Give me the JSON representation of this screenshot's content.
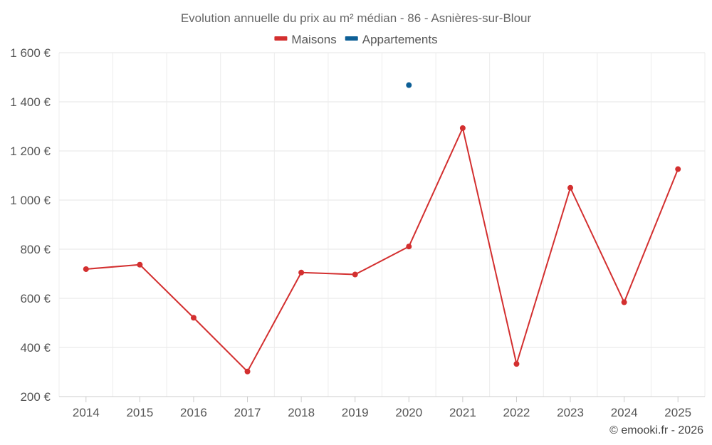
{
  "chart_data": {
    "type": "line",
    "title": "Evolution annuelle du prix au m² médian - 86 - Asnières-sur-Blour",
    "categories": [
      "2014",
      "2015",
      "2016",
      "2017",
      "2018",
      "2019",
      "2020",
      "2021",
      "2022",
      "2023",
      "2024",
      "2025"
    ],
    "series": [
      {
        "name": "Maisons",
        "color": "#d32f2f",
        "values": [
          719,
          737,
          521,
          302,
          705,
          697,
          811,
          1293,
          333,
          1050,
          584,
          1126
        ]
      },
      {
        "name": "Appartements",
        "color": "#0d5f96",
        "values": [
          null,
          null,
          null,
          null,
          null,
          null,
          1468,
          null,
          null,
          null,
          null,
          null
        ]
      }
    ],
    "y_ticks": [
      "200 €",
      "400 €",
      "600 €",
      "800 €",
      "1 000 €",
      "1 200 €",
      "1 400 €",
      "1 600 €"
    ],
    "ylim": [
      200,
      1600
    ],
    "grid": true,
    "legend_position": "top-center"
  },
  "credit": "© emooki.fr - 2026"
}
